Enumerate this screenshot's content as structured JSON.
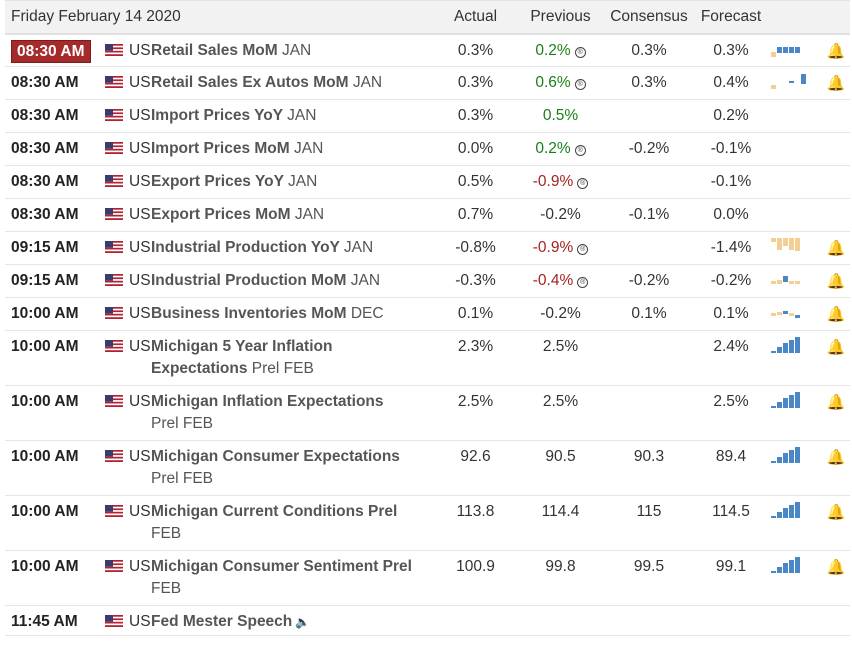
{
  "header": {
    "date": "Friday February 14 2020",
    "actual": "Actual",
    "previous": "Previous",
    "consensus": "Consensus",
    "forecast": "Forecast"
  },
  "colors": {
    "positive": "#1a7f1a",
    "negative": "#a52222",
    "highlight": "#a52a2a",
    "bar_blue": "#4a87c5",
    "bar_tan": "#f3cf94"
  },
  "rows": [
    {
      "time": "08:30 AM",
      "country": "US",
      "event": "Retail Sales MoM",
      "period": "JAN",
      "actual": "0.3%",
      "previous": "0.2%",
      "consensus": "0.3%",
      "forecast": "0.3%"
    },
    {
      "time": "08:30 AM",
      "country": "US",
      "event": "Retail Sales Ex Autos MoM",
      "period": "JAN",
      "actual": "0.3%",
      "previous": "0.6%",
      "consensus": "0.3%",
      "forecast": "0.4%"
    },
    {
      "time": "08:30 AM",
      "country": "US",
      "event": "Import Prices YoY",
      "period": "JAN",
      "actual": "0.3%",
      "previous": "0.5%",
      "consensus": "",
      "forecast": "0.2%"
    },
    {
      "time": "08:30 AM",
      "country": "US",
      "event": "Import Prices MoM",
      "period": "JAN",
      "actual": "0.0%",
      "previous": "0.2%",
      "consensus": "-0.2%",
      "forecast": "-0.1%"
    },
    {
      "time": "08:30 AM",
      "country": "US",
      "event": "Export Prices YoY",
      "period": "JAN",
      "actual": "0.5%",
      "previous": "-0.9%",
      "consensus": "",
      "forecast": "-0.1%"
    },
    {
      "time": "08:30 AM",
      "country": "US",
      "event": "Export Prices MoM",
      "period": "JAN",
      "actual": "0.7%",
      "previous": "-0.2%",
      "consensus": "-0.1%",
      "forecast": "0.0%"
    },
    {
      "time": "09:15 AM",
      "country": "US",
      "event": "Industrial Production YoY",
      "period": "JAN",
      "actual": "-0.8%",
      "previous": "-0.9%",
      "consensus": "",
      "forecast": "-1.4%"
    },
    {
      "time": "09:15 AM",
      "country": "US",
      "event": "Industrial Production MoM",
      "period": "JAN",
      "actual": "-0.3%",
      "previous": "-0.4%",
      "consensus": "-0.2%",
      "forecast": "-0.2%"
    },
    {
      "time": "10:00 AM",
      "country": "US",
      "event": "Business Inventories MoM",
      "period": "DEC",
      "actual": "0.1%",
      "previous": "-0.2%",
      "consensus": "0.1%",
      "forecast": "0.1%"
    },
    {
      "time": "10:00 AM",
      "country": "US",
      "event": "Michigan 5 Year Inflation",
      "event2": "Expectations",
      "period": "Prel FEB",
      "actual": "2.3%",
      "previous": "2.5%",
      "consensus": "",
      "forecast": "2.4%"
    },
    {
      "time": "10:00 AM",
      "country": "US",
      "event": "Michigan Inflation Expectations",
      "event2": "",
      "period": "Prel FEB",
      "actual": "2.5%",
      "previous": "2.5%",
      "consensus": "",
      "forecast": "2.5%"
    },
    {
      "time": "10:00 AM",
      "country": "US",
      "event": "Michigan Consumer Expectations",
      "event2": "",
      "period": "Prel FEB",
      "actual": "92.6",
      "previous": "90.5",
      "consensus": "90.3",
      "forecast": "89.4"
    },
    {
      "time": "10:00 AM",
      "country": "US",
      "event": "Michigan Current Conditions Prel",
      "event2": "",
      "period": "FEB",
      "actual": "113.8",
      "previous": "114.4",
      "consensus": "115",
      "forecast": "114.5"
    },
    {
      "time": "10:00 AM",
      "country": "US",
      "event": "Michigan Consumer Sentiment Prel",
      "event2": "",
      "period": "FEB",
      "actual": "100.9",
      "previous": "99.8",
      "consensus": "99.5",
      "forecast": "99.1"
    },
    {
      "time": "11:45 AM",
      "country": "US",
      "event": "Fed Mester Speech",
      "period": ""
    }
  ]
}
